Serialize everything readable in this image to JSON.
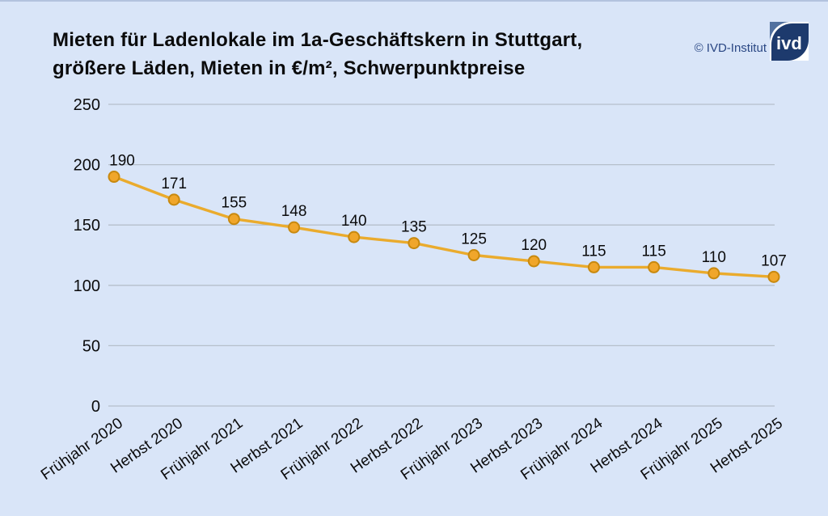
{
  "header": {
    "title_line1": "Mieten für Ladenlokale im 1a-Geschäftskern in Stuttgart,",
    "title_line2": "größere Läden, Mieten in €/m², Schwerpunktpreise",
    "copyright": "© IVD-Institut",
    "logo_text": "ivd"
  },
  "chart_data": {
    "type": "line",
    "title": "Mieten für Ladenlokale im 1a-Geschäftskern in Stuttgart, größere Läden, Mieten in €/m², Schwerpunktpreise",
    "categories": [
      "Frühjahr 2020",
      "Herbst 2020",
      "Frühjahr 2021",
      "Herbst 2021",
      "Frühjahr 2022",
      "Herbst 2022",
      "Frühjahr 2023",
      "Herbst 2023",
      "Frühjahr 2024",
      "Herbst 2024",
      "Frühjahr 2025",
      "Herbst 2025"
    ],
    "values": [
      190,
      171,
      155,
      148,
      140,
      135,
      125,
      120,
      115,
      115,
      110,
      107
    ],
    "data_labels": [
      "190",
      "171",
      "155",
      "148",
      "140",
      "135",
      "125",
      "120",
      "115",
      "115",
      "110",
      "107"
    ],
    "xlabel": "",
    "ylabel": "",
    "ylim": [
      0,
      250
    ],
    "yticks": [
      0,
      50,
      100,
      150,
      200,
      250
    ],
    "grid": true,
    "legend": false
  },
  "theme": {
    "background": "#d9e5f8",
    "line_color": "#eaab2d",
    "marker_fill": "#f0a62b",
    "marker_stroke": "#c8890f",
    "grid_color": "#b6bfcb",
    "text_color": "#0b0b0c",
    "copyright_color": "#2a4784",
    "logo_navy": "#1d3a6d",
    "logo_slate": "#51709f"
  }
}
